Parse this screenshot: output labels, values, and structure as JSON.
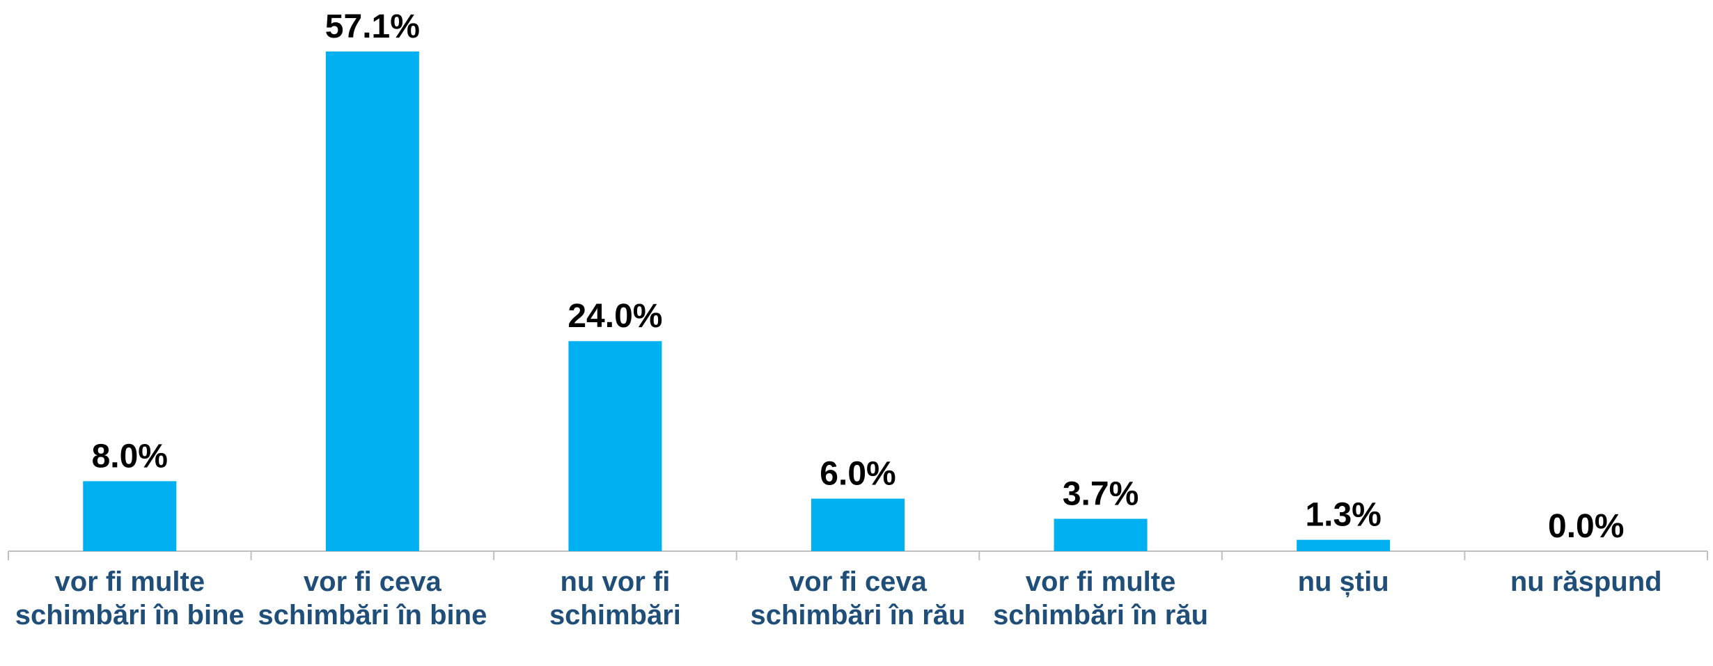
{
  "chart_data": {
    "type": "bar",
    "categories": [
      "vor fi multe schimbări în bine",
      "vor fi ceva schimbări în bine",
      "nu vor fi schimbări",
      "vor fi ceva schimbări în rău",
      "vor fi multe schimbări în rău",
      "nu știu",
      "nu răspund"
    ],
    "values": [
      8.0,
      57.1,
      24.0,
      6.0,
      3.7,
      1.3,
      0.0
    ],
    "value_labels": [
      "8.0%",
      "57.1%",
      "24.0%",
      "6.0%",
      "3.7%",
      "1.3%",
      "0.0%"
    ],
    "color": "#00b0f0"
  }
}
